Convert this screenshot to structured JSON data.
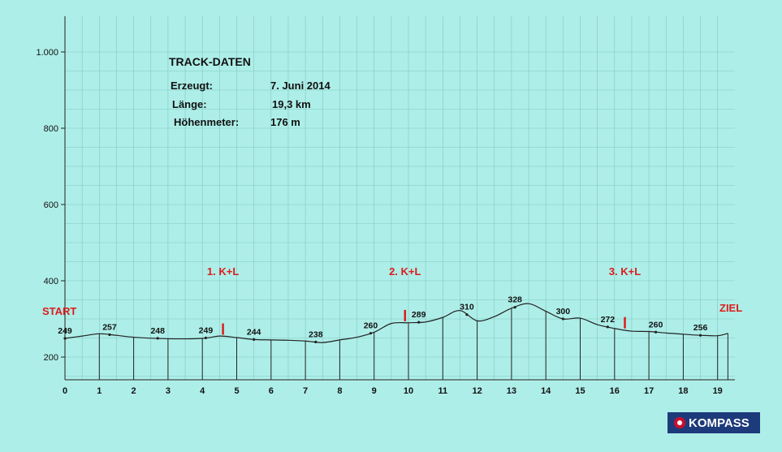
{
  "info": {
    "title": "TRACK-DATEN",
    "rows": [
      {
        "label": "Erzeugt:",
        "value": "7. Juni 2014"
      },
      {
        "label": "Länge:",
        "value": "19,3 km"
      },
      {
        "label": "Höhenmeter:",
        "value": "176 m"
      }
    ]
  },
  "logo": {
    "text": "KOMPASS",
    "icon": "compass-logo-icon"
  },
  "chart_data": {
    "type": "area",
    "title": "",
    "xlabel": "",
    "ylabel": "",
    "xlim": [
      0,
      19.3
    ],
    "ylim": [
      100,
      1000
    ],
    "grid": true,
    "x_ticks": [
      0,
      1,
      2,
      3,
      4,
      5,
      6,
      7,
      8,
      9,
      10,
      11,
      12,
      13,
      14,
      15,
      16,
      17,
      18,
      19
    ],
    "x_tick_labels": [
      "0",
      "1",
      "2",
      "3",
      "4",
      "5",
      "6",
      "7",
      "8",
      "9",
      "10",
      "11",
      "12",
      "13",
      "14",
      "15",
      "16",
      "17",
      "18",
      "19"
    ],
    "y_ticks": [
      200,
      400,
      600,
      800,
      1000
    ],
    "y_tick_labels": [
      "200",
      "400",
      "600",
      "800",
      "1.000"
    ],
    "profile": {
      "x": [
        0,
        0.5,
        1,
        1.5,
        2,
        3,
        4,
        4.5,
        5,
        5.5,
        6,
        6.5,
        7,
        7.5,
        8,
        8.5,
        9,
        9.5,
        10,
        10.5,
        11,
        11.5,
        12,
        12.5,
        13,
        13.5,
        14,
        14.5,
        15,
        15.5,
        16,
        16.5,
        17,
        17.5,
        18,
        18.5,
        19,
        19.3
      ],
      "y": [
        249,
        255,
        261,
        257,
        252,
        248,
        249,
        255,
        251,
        246,
        245,
        244,
        242,
        238,
        245,
        252,
        265,
        288,
        290,
        292,
        304,
        322,
        295,
        306,
        328,
        340,
        320,
        300,
        302,
        285,
        275,
        268,
        267,
        263,
        260,
        257,
        256,
        262
      ]
    },
    "annotations": [
      {
        "x": 0,
        "y": 249,
        "label": "249"
      },
      {
        "x": 1.3,
        "y": 257,
        "label": "257"
      },
      {
        "x": 2.7,
        "y": 248,
        "label": "248"
      },
      {
        "x": 4.1,
        "y": 249,
        "label": "249"
      },
      {
        "x": 5.5,
        "y": 244,
        "label": "244"
      },
      {
        "x": 7.3,
        "y": 238,
        "label": "238"
      },
      {
        "x": 8.9,
        "y": 260,
        "label": "260"
      },
      {
        "x": 10.3,
        "y": 289,
        "label": "289"
      },
      {
        "x": 11.7,
        "y": 310,
        "label": "310"
      },
      {
        "x": 13.1,
        "y": 328,
        "label": "328"
      },
      {
        "x": 14.5,
        "y": 300,
        "label": "300"
      },
      {
        "x": 15.8,
        "y": 272,
        "label": "272"
      },
      {
        "x": 17.2,
        "y": 260,
        "label": "260"
      },
      {
        "x": 18.5,
        "y": 256,
        "label": "256"
      }
    ],
    "markers": [
      {
        "x": 4.6,
        "label": "1. K+L"
      },
      {
        "x": 9.9,
        "label": "2. K+L"
      },
      {
        "x": 16.3,
        "label": "3. K+L"
      }
    ],
    "start_label": "START",
    "end_label": "ZIEL",
    "colors": {
      "background": "#aeeee8",
      "grid": "#7fc8c0",
      "line": "#222222",
      "marker": "#dd1c1c"
    }
  }
}
